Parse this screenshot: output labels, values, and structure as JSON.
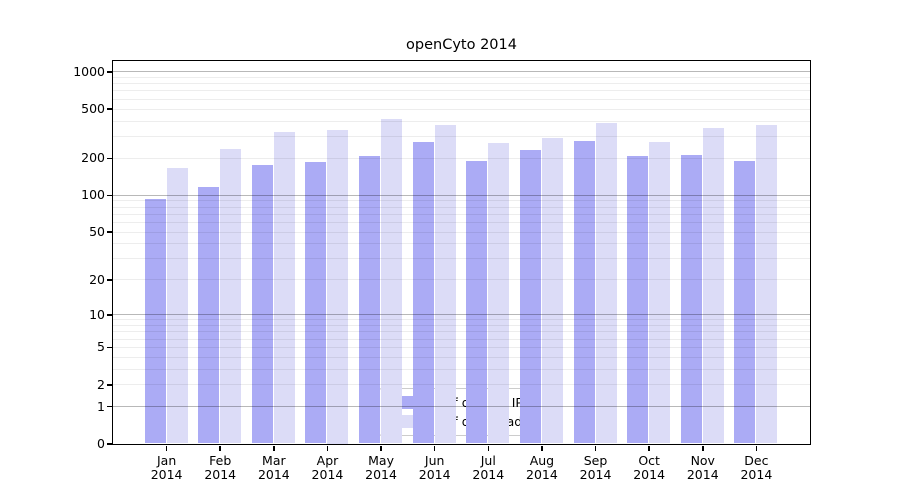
{
  "title": "openCyto 2014",
  "chart_data": {
    "type": "bar",
    "title": "openCyto 2014",
    "categories": [
      "Jan",
      "Feb",
      "Mar",
      "Apr",
      "May",
      "Jun",
      "Jul",
      "Aug",
      "Sep",
      "Oct",
      "Nov",
      "Dec"
    ],
    "year_label": "2014",
    "series": [
      {
        "name": "Nb of distinct IPs",
        "color": "#ababf5",
        "values": [
          93,
          115,
          175,
          185,
          205,
          270,
          190,
          230,
          275,
          205,
          210,
          190
        ]
      },
      {
        "name": "Nb of downloads",
        "color": "#dcdcf7",
        "values": [
          165,
          235,
          325,
          335,
          415,
          370,
          265,
          290,
          385,
          270,
          350,
          370
        ]
      }
    ],
    "yscale": "log1p",
    "yticks": [
      0,
      1,
      2,
      5,
      10,
      20,
      50,
      100,
      200,
      500,
      1000
    ],
    "ylim": [
      0,
      1210
    ],
    "xlabel": "",
    "ylabel": "",
    "grid": "horizontal; light minor lines, darker lines at 1, 10, 100, 1000",
    "legend_position": "inside lower-center",
    "background": "#ffffff",
    "frame": "full box, black"
  }
}
